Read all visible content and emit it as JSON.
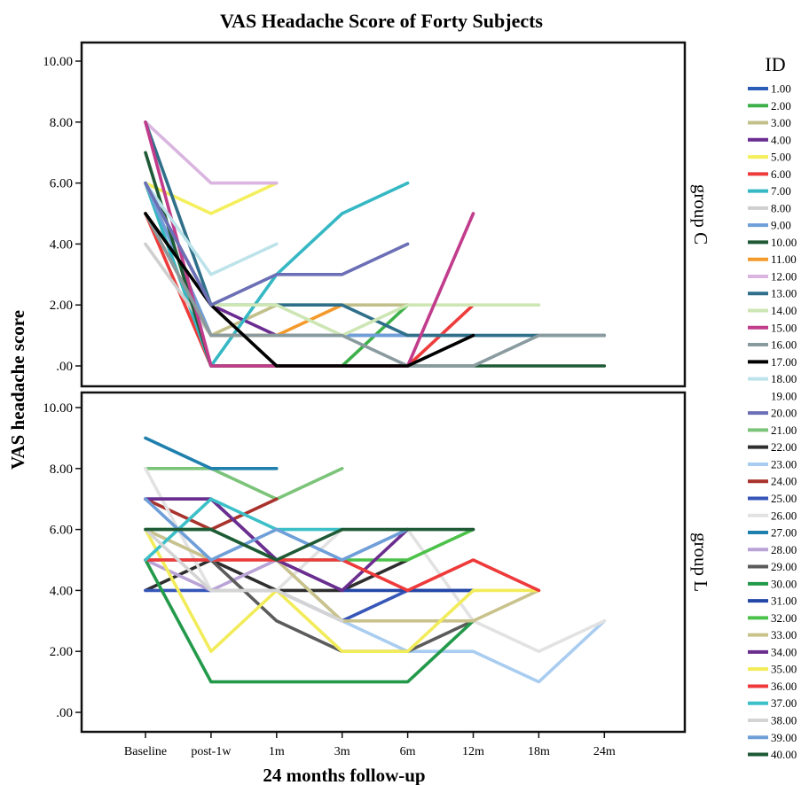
{
  "chart_data": {
    "type": "line",
    "title": "VAS Headache Score of Forty Subjects",
    "xlabel": "24 months follow-up",
    "ylabel": "VAS headache score",
    "categories": [
      "Baseline",
      "post-1w",
      "1m",
      "3m",
      "6m",
      "12m",
      "18m",
      "24m"
    ],
    "ylim": [
      0,
      10
    ],
    "ytick_labels": [
      ".00",
      "2.00",
      "4.00",
      "6.00",
      "8.00",
      "10.00"
    ],
    "ytick_values": [
      0,
      2,
      4,
      6,
      8,
      10
    ],
    "grid": false,
    "legend_title": "ID",
    "legend_placement": "right",
    "panels": [
      {
        "name": "group C",
        "series": [
          {
            "id": "1.00",
            "color": "#2a5cb8",
            "values": [
              5,
              1,
              1,
              1,
              1,
              1,
              null,
              null
            ]
          },
          {
            "id": "2.00",
            "color": "#3db04a",
            "values": [
              6,
              0,
              0,
              0,
              2,
              null,
              null,
              null
            ]
          },
          {
            "id": "3.00",
            "color": "#c2c08a",
            "values": [
              5,
              1,
              2,
              2,
              2,
              null,
              null,
              null
            ]
          },
          {
            "id": "4.00",
            "color": "#6a2c91",
            "values": [
              6,
              2,
              1,
              1,
              1,
              null,
              null,
              null
            ]
          },
          {
            "id": "5.00",
            "color": "#f4ef5c",
            "values": [
              6,
              5,
              6,
              null,
              null,
              null,
              null,
              null
            ]
          },
          {
            "id": "6.00",
            "color": "#ee3b3b",
            "values": [
              5,
              0,
              0,
              0,
              0,
              2,
              null,
              null
            ]
          },
          {
            "id": "7.00",
            "color": "#35b8c4",
            "values": [
              6,
              0,
              3,
              5,
              6,
              null,
              null,
              null
            ]
          },
          {
            "id": "8.00",
            "color": "#cfcfcf",
            "values": [
              4,
              1,
              1,
              1,
              1,
              1,
              1,
              null
            ]
          },
          {
            "id": "9.00",
            "color": "#6f9fd8",
            "values": [
              6,
              1,
              1,
              1,
              1,
              null,
              null,
              null
            ]
          },
          {
            "id": "10.00",
            "color": "#1e5a36",
            "values": [
              7,
              0,
              0,
              0,
              0,
              0,
              0,
              0
            ]
          },
          {
            "id": "11.00",
            "color": "#f49a2c",
            "values": [
              5,
              1,
              1,
              2,
              null,
              null,
              null,
              null
            ]
          },
          {
            "id": "12.00",
            "color": "#d9b5e0",
            "values": [
              8,
              6,
              6,
              null,
              null,
              null,
              null,
              null
            ]
          },
          {
            "id": "13.00",
            "color": "#2f6f8a",
            "values": [
              8,
              2,
              2,
              2,
              1,
              1,
              1,
              1
            ]
          },
          {
            "id": "14.00",
            "color": "#cde6b4",
            "values": [
              6,
              2,
              2,
              1,
              2,
              2,
              2,
              null
            ]
          },
          {
            "id": "15.00",
            "color": "#c23c8c",
            "values": [
              8,
              0,
              0,
              0,
              0,
              5,
              null,
              null
            ]
          },
          {
            "id": "16.00",
            "color": "#8a9ba0",
            "values": [
              5,
              1,
              1,
              1,
              0,
              0,
              1,
              1
            ]
          },
          {
            "id": "17.00",
            "color": "#000000",
            "values": [
              5,
              2,
              0,
              0,
              0,
              1,
              null,
              null
            ]
          },
          {
            "id": "18.00",
            "color": "#bde3ea",
            "values": [
              6,
              3,
              4,
              null,
              null,
              null,
              null,
              null
            ]
          },
          {
            "id": "20.00",
            "color": "#6b6fb5",
            "values": [
              6,
              2,
              3,
              3,
              4,
              null,
              null,
              null
            ]
          }
        ]
      },
      {
        "name": "group L",
        "series": [
          {
            "id": "21.00",
            "color": "#7cc47a",
            "values": [
              8,
              8,
              7,
              8,
              null,
              null,
              null,
              null
            ]
          },
          {
            "id": "22.00",
            "color": "#2e2e2e",
            "values": [
              4,
              5,
              4,
              4,
              5,
              null,
              null,
              null
            ]
          },
          {
            "id": "23.00",
            "color": "#a9cdf0",
            "values": [
              6,
              5,
              5,
              3,
              2,
              2,
              1,
              3
            ]
          },
          {
            "id": "24.00",
            "color": "#a8322c",
            "values": [
              7,
              6,
              7,
              null,
              null,
              null,
              null,
              null
            ]
          },
          {
            "id": "25.00",
            "color": "#3656b8",
            "values": [
              4,
              4,
              4,
              3,
              4,
              4,
              null,
              null
            ]
          },
          {
            "id": "26.00",
            "color": "#e2e2e2",
            "values": [
              8,
              4,
              4,
              6,
              6,
              3,
              2,
              3
            ]
          },
          {
            "id": "27.00",
            "color": "#1f7fad",
            "values": [
              9,
              8,
              8,
              null,
              null,
              null,
              null,
              null
            ]
          },
          {
            "id": "28.00",
            "color": "#b9a3d6",
            "values": [
              5,
              4,
              5,
              5,
              6,
              null,
              null,
              null
            ]
          },
          {
            "id": "29.00",
            "color": "#5b5b5b",
            "values": [
              5,
              5,
              3,
              2,
              2,
              3,
              null,
              null
            ]
          },
          {
            "id": "30.00",
            "color": "#23994a",
            "values": [
              5,
              1,
              1,
              1,
              1,
              3,
              null,
              null
            ]
          },
          {
            "id": "31.00",
            "color": "#2447a8",
            "values": [
              7,
              7,
              5,
              4,
              4,
              4,
              null,
              null
            ]
          },
          {
            "id": "32.00",
            "color": "#4cc24a",
            "values": [
              6,
              6,
              5,
              5,
              5,
              6,
              null,
              null
            ]
          },
          {
            "id": "33.00",
            "color": "#c9c28c",
            "values": [
              6,
              5,
              5,
              3,
              3,
              3,
              4,
              null
            ]
          },
          {
            "id": "34.00",
            "color": "#6b2d8e",
            "values": [
              7,
              7,
              5,
              4,
              6,
              null,
              null,
              null
            ]
          },
          {
            "id": "35.00",
            "color": "#f2ec5a",
            "values": [
              6,
              2,
              4,
              2,
              2,
              4,
              4,
              null
            ]
          },
          {
            "id": "36.00",
            "color": "#ee3a3a",
            "values": [
              5,
              5,
              5,
              5,
              4,
              5,
              4,
              null
            ]
          },
          {
            "id": "37.00",
            "color": "#3cc0c8",
            "values": [
              5,
              7,
              6,
              6,
              null,
              null,
              null,
              null
            ]
          },
          {
            "id": "38.00",
            "color": "#d4d4d4",
            "values": [
              6,
              4,
              4,
              3,
              null,
              null,
              null,
              null
            ]
          },
          {
            "id": "39.00",
            "color": "#6f9fd8",
            "values": [
              7,
              5,
              6,
              5,
              6,
              null,
              null,
              null
            ]
          },
          {
            "id": "40.00",
            "color": "#1e5a36",
            "values": [
              6,
              6,
              5,
              6,
              6,
              6,
              null,
              null
            ]
          }
        ]
      }
    ],
    "legend": [
      {
        "label": "1.00",
        "color": "#2a5cb8"
      },
      {
        "label": "2.00",
        "color": "#3db04a"
      },
      {
        "label": "3.00",
        "color": "#c2c08a"
      },
      {
        "label": "4.00",
        "color": "#6a2c91"
      },
      {
        "label": "5.00",
        "color": "#f4ef5c"
      },
      {
        "label": "6.00",
        "color": "#ee3b3b"
      },
      {
        "label": "7.00",
        "color": "#35b8c4"
      },
      {
        "label": "8.00",
        "color": "#cfcfcf"
      },
      {
        "label": "9.00",
        "color": "#6f9fd8"
      },
      {
        "label": "10.00",
        "color": "#1e5a36"
      },
      {
        "label": "11.00",
        "color": "#f49a2c"
      },
      {
        "label": "12.00",
        "color": "#d9b5e0"
      },
      {
        "label": "13.00",
        "color": "#2f6f8a"
      },
      {
        "label": "14.00",
        "color": "#cde6b4"
      },
      {
        "label": "15.00",
        "color": "#c23c8c"
      },
      {
        "label": "16.00",
        "color": "#8a9ba0"
      },
      {
        "label": "17.00",
        "color": "#000000"
      },
      {
        "label": "18.00",
        "color": "#bde3ea"
      },
      {
        "label": "19.00",
        "color": null
      },
      {
        "label": "20.00",
        "color": "#6b6fb5"
      },
      {
        "label": "21.00",
        "color": "#7cc47a"
      },
      {
        "label": "22.00",
        "color": "#2e2e2e"
      },
      {
        "label": "23.00",
        "color": "#a9cdf0"
      },
      {
        "label": "24.00",
        "color": "#a8322c"
      },
      {
        "label": "25.00",
        "color": "#3656b8"
      },
      {
        "label": "26.00",
        "color": "#e2e2e2"
      },
      {
        "label": "27.00",
        "color": "#1f7fad"
      },
      {
        "label": "28.00",
        "color": "#b9a3d6"
      },
      {
        "label": "29.00",
        "color": "#5b5b5b"
      },
      {
        "label": "30.00",
        "color": "#23994a"
      },
      {
        "label": "31.00",
        "color": "#2447a8"
      },
      {
        "label": "32.00",
        "color": "#4cc24a"
      },
      {
        "label": "33.00",
        "color": "#c9c28c"
      },
      {
        "label": "34.00",
        "color": "#6b2d8e"
      },
      {
        "label": "35.00",
        "color": "#f2ec5a"
      },
      {
        "label": "36.00",
        "color": "#ee3a3a"
      },
      {
        "label": "37.00",
        "color": "#3cc0c8"
      },
      {
        "label": "38.00",
        "color": "#d4d4d4"
      },
      {
        "label": "39.00",
        "color": "#6f9fd8"
      },
      {
        "label": "40.00",
        "color": "#1e5a36"
      }
    ]
  }
}
